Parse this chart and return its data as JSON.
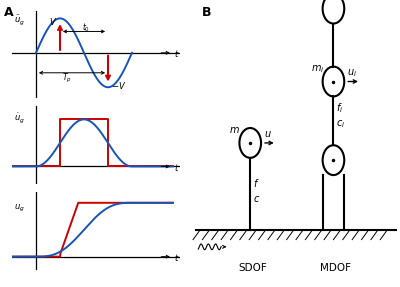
{
  "bg_color": "#ffffff",
  "blue": "#1555b7",
  "red": "#cc0000",
  "black": "#000000",
  "panel_A_label": "A",
  "panel_B_label": "B"
}
